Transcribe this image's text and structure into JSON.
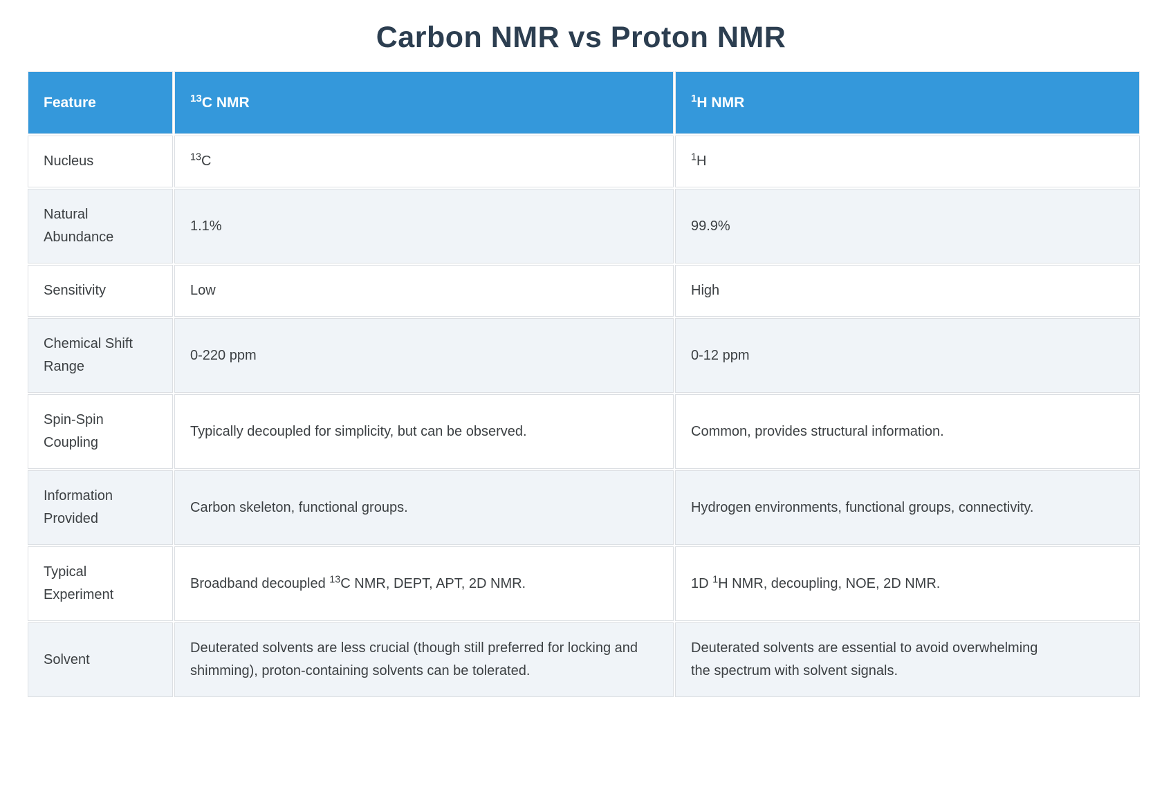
{
  "page": {
    "title": "Carbon NMR vs Proton NMR"
  },
  "colors": {
    "header_bg": "#3498db",
    "header_text": "#ffffff",
    "row_alt_bg": "#f0f4f8",
    "title_color": "#2c3e50",
    "body_text": "#3c4043",
    "border": "#dcdfe3"
  },
  "table": {
    "columns": [
      {
        "label": "Feature"
      },
      {
        "label": "^{13}C NMR"
      },
      {
        "label": "^{1}H NMR"
      }
    ],
    "rows": [
      {
        "feature": "Nucleus",
        "c13": "^{13}C",
        "h1": "^{1}H"
      },
      {
        "feature": "Natural Abundance",
        "c13": "1.1%",
        "h1": "99.9%"
      },
      {
        "feature": "Sensitivity",
        "c13": "Low",
        "h1": "High"
      },
      {
        "feature": "Chemical Shift Range",
        "c13": "0-220 ppm",
        "h1": "0-12 ppm"
      },
      {
        "feature": "Spin-Spin Coupling",
        "c13": "Typically decoupled for simplicity, but can be observed.",
        "h1": "Common, provides structural information."
      },
      {
        "feature": "Information Provided",
        "c13": "Carbon skeleton, functional groups.",
        "h1": "Hydrogen environments, functional groups, connectivity."
      },
      {
        "feature": "Typical Experiment",
        "c13": "Broadband decoupled ^{13}C NMR, DEPT, APT, 2D NMR.",
        "h1": "1D ^{1}H NMR, decoupling, NOE, 2D NMR."
      },
      {
        "feature": "Solvent",
        "c13": "Deuterated solvents are less crucial (though still preferred for locking and shimming), proton-containing solvents can be tolerated.",
        "h1": "Deuterated solvents are essential to avoid overwhelming the spectrum with solvent signals."
      }
    ]
  }
}
